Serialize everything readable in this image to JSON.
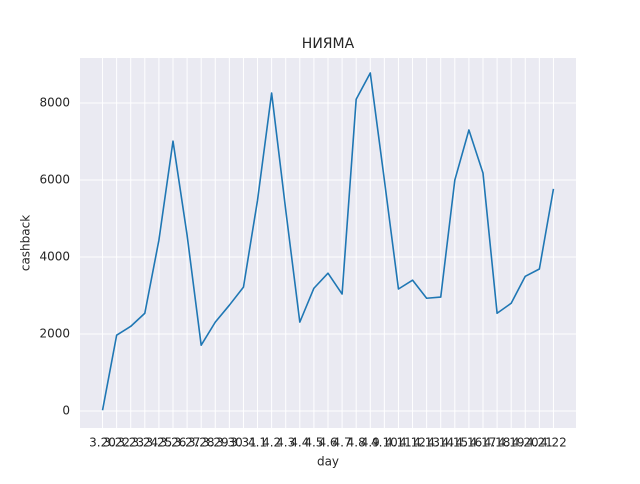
{
  "chart_data": {
    "type": "line",
    "title": "НИЯМА",
    "x_label": "day",
    "y_label": "cashback",
    "categories": [
      "3.20",
      "3.22",
      "3.23",
      "3.24",
      "3.25",
      "3.26",
      "3.27",
      "3.28",
      "3.29",
      "3.30",
      "3.31",
      "4.1",
      "4.2",
      "4.3",
      "4.4",
      "4.5",
      "4.6",
      "4.7",
      "4.8",
      "4.9",
      "4.10",
      "4.11",
      "4.12",
      "4.13",
      "4.14",
      "4.15",
      "4.16",
      "4.17",
      "4.18",
      "4.19",
      "4.20",
      "4.21",
      "4.22"
    ],
    "series": [
      {
        "name": "cashback",
        "color": "#1f77b4",
        "values": [
          20,
          1970,
          2200,
          2540,
          4440,
          7010,
          4570,
          1710,
          2310,
          2750,
          3220,
          5480,
          8260,
          5220,
          2310,
          3190,
          3580,
          3040,
          8100,
          8780,
          6000,
          3170,
          3400,
          2930,
          2960,
          6000,
          7300,
          6180,
          2540,
          2800,
          3500,
          3690,
          5770
        ]
      }
    ],
    "ylim": [
      -440,
      9170
    ],
    "yticks": [
      0,
      2000,
      4000,
      6000,
      8000
    ],
    "grid": true
  }
}
